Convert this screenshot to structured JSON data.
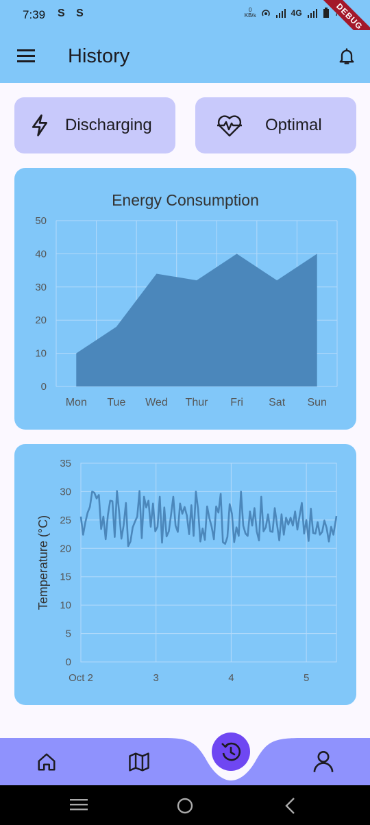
{
  "status_bar": {
    "time": "7:39",
    "left_icons": "S S",
    "kbs_value": "0",
    "kbs_unit": "KB/s",
    "network": "4G",
    "battery_text": "7",
    "debug_label": "DEBUG"
  },
  "app_bar": {
    "title": "History",
    "menu_icon": "menu-icon",
    "bell_icon": "bell-icon"
  },
  "status_cards": [
    {
      "label": "Discharging",
      "icon": "lightning-icon"
    },
    {
      "label": "Optimal",
      "icon": "heart-pulse-icon"
    }
  ],
  "colors": {
    "primary_bg": "#81c7f9",
    "card_bg": "#c8c9fb",
    "bar_fill": "#4b87bb",
    "nav_bg": "#8f92fd",
    "fab": "#6f47f2"
  },
  "chart_data": [
    {
      "type": "area",
      "title": "Energy Consumption",
      "xlabel": "",
      "ylabel": "",
      "categories": [
        "Mon",
        "Tue",
        "Wed",
        "Thur",
        "Fri",
        "Sat",
        "Sun"
      ],
      "values": [
        10,
        18,
        34,
        32,
        40,
        32,
        40
      ],
      "ylim": [
        0,
        50
      ],
      "yticks": [
        0,
        10,
        20,
        30,
        40,
        50
      ],
      "grid": true
    },
    {
      "type": "line",
      "title": "",
      "xlabel": "",
      "ylabel": "Temperature (°C)",
      "ylim": [
        0,
        35
      ],
      "yticks": [
        0,
        5,
        10,
        15,
        20,
        25,
        30,
        35
      ],
      "xticks": [
        "Oct 2",
        "3",
        "4",
        "5"
      ],
      "xlim": [
        0,
        3.4
      ],
      "grid": true,
      "x": [
        0,
        0.03,
        0.06,
        0.09,
        0.12,
        0.15,
        0.18,
        0.21,
        0.24,
        0.27,
        0.3,
        0.33,
        0.36,
        0.39,
        0.42,
        0.45,
        0.48,
        0.51,
        0.54,
        0.57,
        0.6,
        0.63,
        0.66,
        0.69,
        0.72,
        0.75,
        0.78,
        0.81,
        0.84,
        0.87,
        0.9,
        0.93,
        0.96,
        0.99,
        1.02,
        1.05,
        1.08,
        1.11,
        1.14,
        1.17,
        1.2,
        1.23,
        1.26,
        1.29,
        1.32,
        1.35,
        1.38,
        1.41,
        1.44,
        1.47,
        1.5,
        1.53,
        1.56,
        1.59,
        1.62,
        1.65,
        1.68,
        1.71,
        1.74,
        1.77,
        1.8,
        1.83,
        1.86,
        1.89,
        1.92,
        1.95,
        1.98,
        2.01,
        2.04,
        2.07,
        2.1,
        2.13,
        2.16,
        2.19,
        2.22,
        2.25,
        2.28,
        2.31,
        2.34,
        2.37,
        2.4,
        2.43,
        2.46,
        2.49,
        2.52,
        2.55,
        2.58,
        2.61,
        2.64,
        2.67,
        2.7,
        2.73,
        2.76,
        2.79,
        2.82,
        2.85,
        2.88,
        2.91,
        2.94,
        2.97,
        3.0,
        3.03,
        3.06,
        3.09,
        3.12,
        3.15,
        3.18,
        3.21,
        3.24,
        3.27,
        3.3,
        3.33,
        3.36,
        3.4
      ],
      "values": [
        25.6,
        22.4,
        24.6,
        26.3,
        27.3,
        30.0,
        29.8,
        28.8,
        29.4,
        23.4,
        25.6,
        21.6,
        25.9,
        28.4,
        28.3,
        22.0,
        30.1,
        26.4,
        21.7,
        24.1,
        28.0,
        20.4,
        21.2,
        23.7,
        24.7,
        25.6,
        30.1,
        21.8,
        29.1,
        27.2,
        28.4,
        23.8,
        27.9,
        23.0,
        23.8,
        29.1,
        21.0,
        27.2,
        22.1,
        23.0,
        25.9,
        29.1,
        24.0,
        22.9,
        27.9,
        26.1,
        27.3,
        25.8,
        22.5,
        27.6,
        22.2,
        30.0,
        26.9,
        21.2,
        23.5,
        21.5,
        27.4,
        25.3,
        23.8,
        21.6,
        27.4,
        26.3,
        29.6,
        21.1,
        20.8,
        22.0,
        27.8,
        26.1,
        21.1,
        23.7,
        22.2,
        30.0,
        24.0,
        22.6,
        22.2,
        26.5,
        24.0,
        27.1,
        23.0,
        21.4,
        29.1,
        23.0,
        23.7,
        26.0,
        23.0,
        22.9,
        27.1,
        24.2,
        21.4,
        26.0,
        22.4,
        25.4,
        24.2,
        25.4,
        24.0,
        26.5,
        23.3,
        25.7,
        28.0,
        22.6,
        25.0,
        21.3,
        27.0,
        22.7,
        22.6,
        24.6,
        22.4,
        22.9,
        24.9,
        23.6,
        21.2,
        23.8,
        22.4,
        25.7
      ]
    }
  ],
  "bottom_nav": {
    "items": [
      "home-icon",
      "map-icon",
      "history-icon",
      "profile-icon"
    ]
  }
}
